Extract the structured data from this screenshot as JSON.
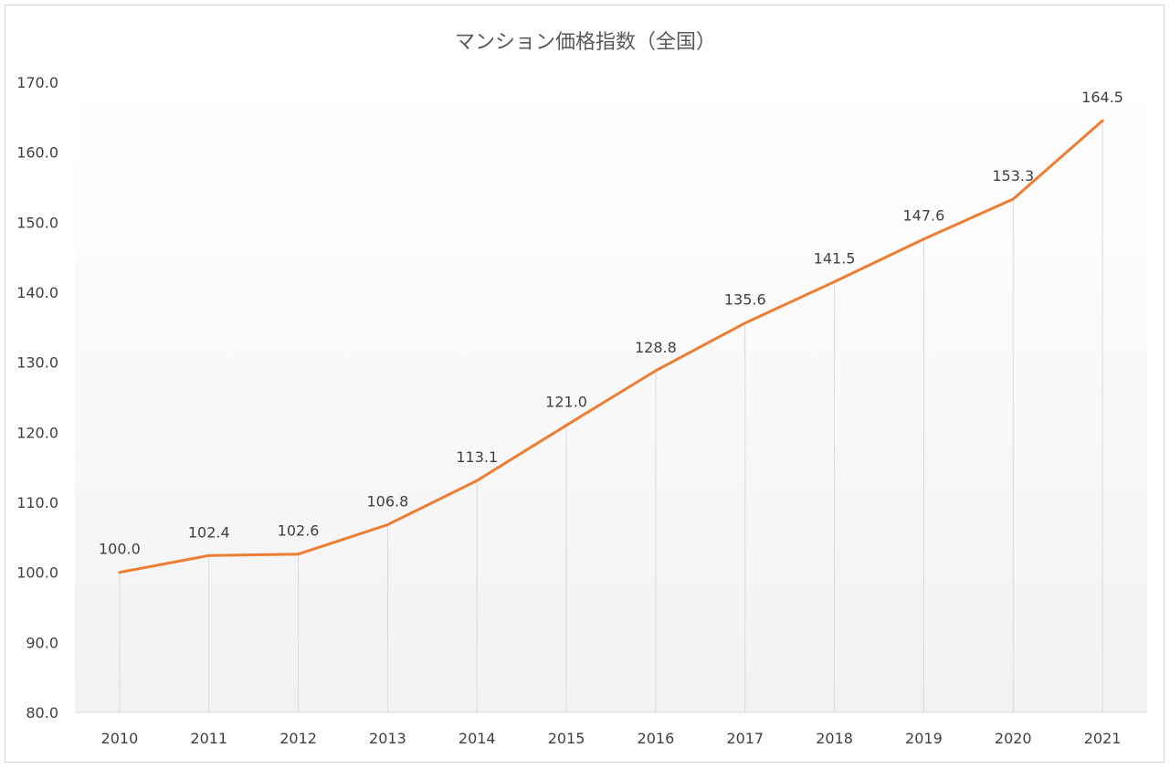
{
  "chart_data": {
    "type": "line",
    "title": "マンション価格指数（全国）",
    "categories": [
      "2010",
      "2011",
      "2012",
      "2013",
      "2014",
      "2015",
      "2016",
      "2017",
      "2018",
      "2019",
      "2020",
      "2021"
    ],
    "series": [
      {
        "values": [
          100.0,
          102.4,
          102.6,
          106.8,
          113.1,
          121.0,
          128.8,
          135.6,
          141.5,
          147.6,
          153.3,
          164.5
        ],
        "labels": [
          "100.0",
          "102.4",
          "102.6",
          "106.8",
          "113.1",
          "121.0",
          "128.8",
          "135.6",
          "141.5",
          "147.6",
          "153.3",
          "164.5"
        ],
        "color": "#ed7d31"
      }
    ],
    "ylim": [
      80,
      170
    ],
    "yticks": [
      "80.0",
      "90.0",
      "100.0",
      "110.0",
      "120.0",
      "130.0",
      "140.0",
      "150.0",
      "160.0",
      "170.0"
    ],
    "xlabel": "",
    "ylabel": "",
    "grid": false,
    "drop_lines": true,
    "data_labels": true
  }
}
